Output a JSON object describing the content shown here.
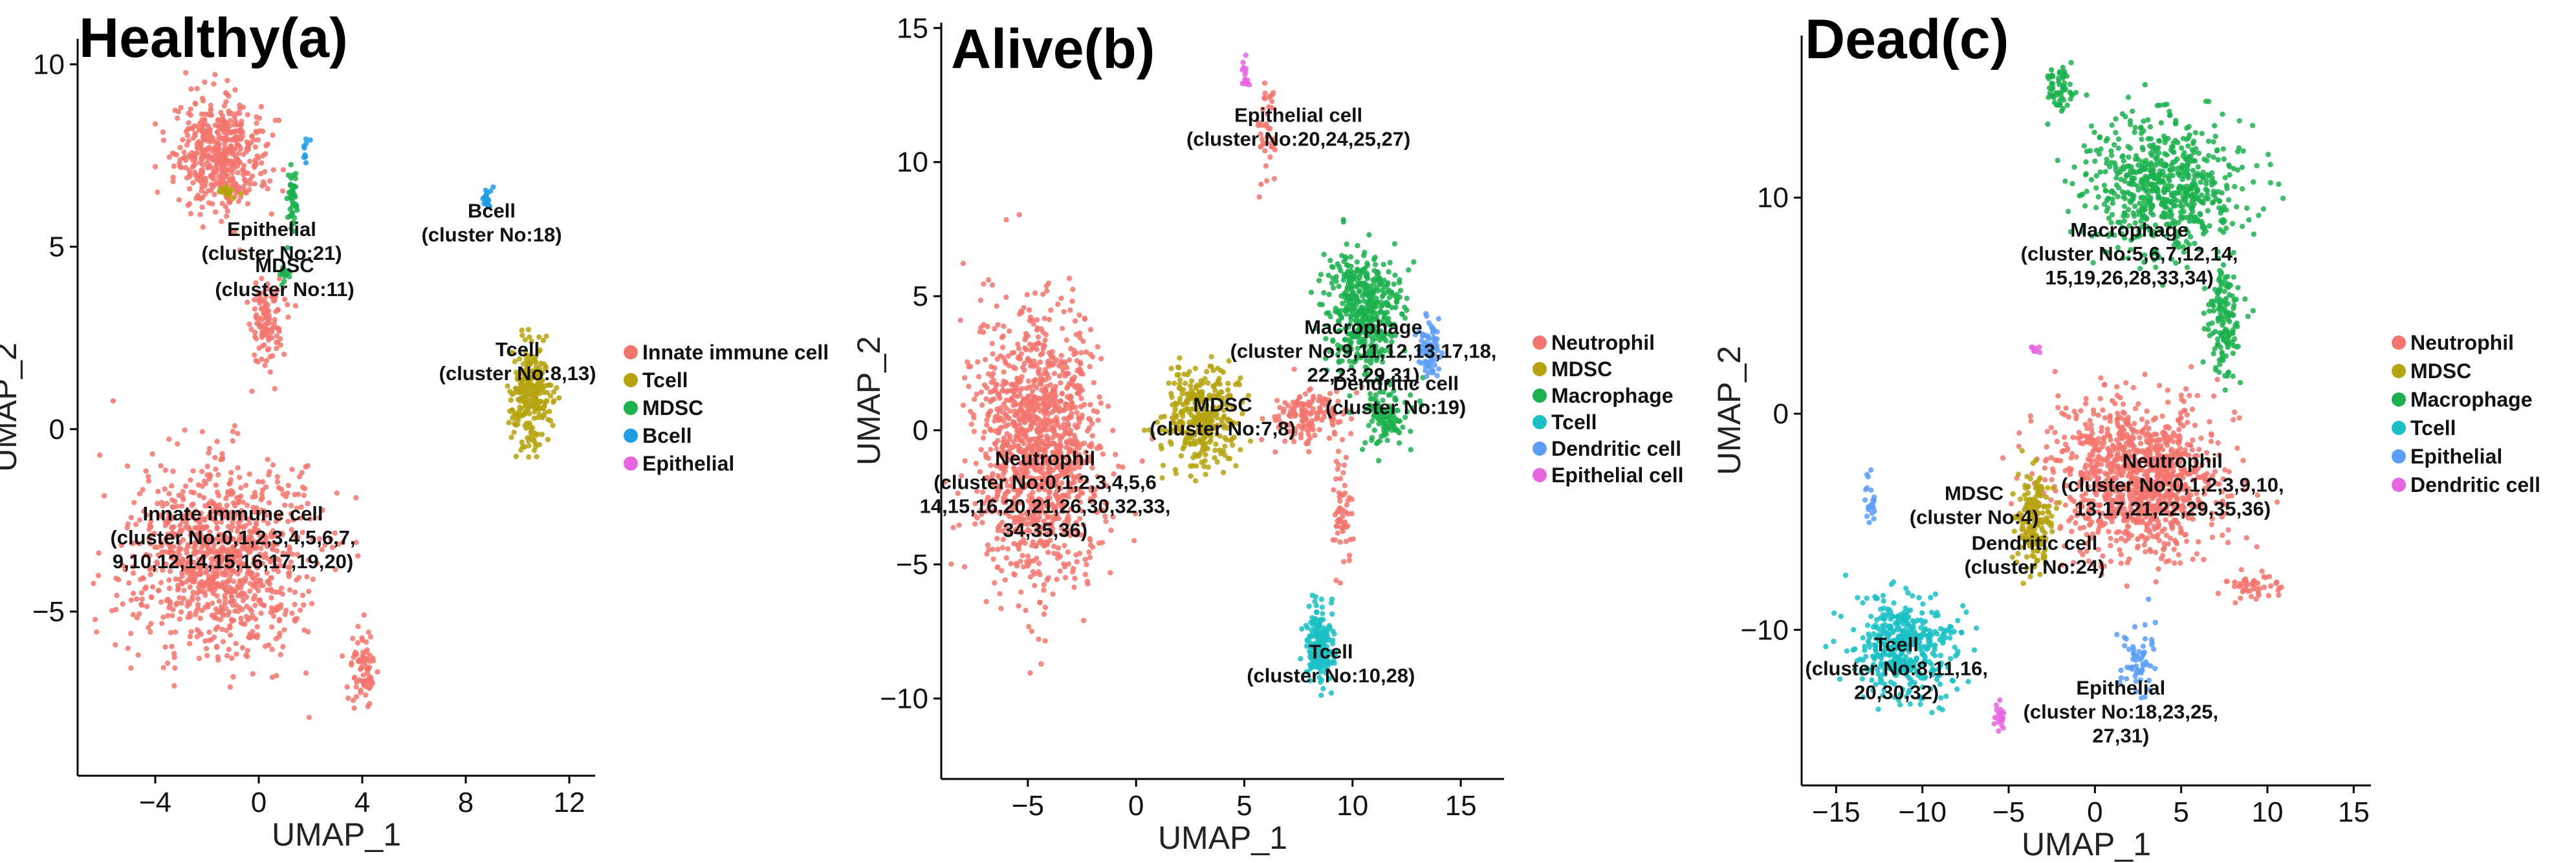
{
  "colors": {
    "red": "#F2766E",
    "olive": "#B5A30F",
    "green": "#1CB04F",
    "teal": "#1ABFC4",
    "blue": "#5C9DF8",
    "magenta": "#E566DF",
    "sky": "#1E9DE3"
  },
  "chart_data": [
    {
      "type": "scatter",
      "title": "Healthy(a)",
      "xlabel": "UMAP_1",
      "ylabel": "UMAP_2",
      "xlim": [
        -7,
        13
      ],
      "ylim": [
        -9.5,
        10.7
      ],
      "xticks": [
        "−4",
        "0",
        "4",
        "8",
        "12"
      ],
      "yticks": [
        "10",
        "5",
        "0",
        "−5"
      ],
      "legend": [
        {
          "label": "Innate immune cell",
          "color": "#F2766E"
        },
        {
          "label": "Tcell",
          "color": "#B5A30F"
        },
        {
          "label": "MDSC",
          "color": "#1CB04F"
        },
        {
          "label": "Bcell",
          "color": "#1E9DE3"
        },
        {
          "label": "Epithelial",
          "color": "#E566DF"
        }
      ],
      "clusters": [
        {
          "cell_type": "Innate immune cell",
          "color": "#F2766E",
          "center": [
            -1.5,
            7.5
          ],
          "spread": [
            1.5,
            1.3
          ],
          "n": 500
        },
        {
          "cell_type": "Innate immune cell",
          "color": "#F2766E",
          "center": [
            -1.5,
            -3.5
          ],
          "spread": [
            3.2,
            2.4
          ],
          "n": 1000
        },
        {
          "cell_type": "Innate immune cell",
          "color": "#F2766E",
          "center": [
            0.3,
            3.0
          ],
          "spread": [
            0.6,
            1.0
          ],
          "n": 120
        },
        {
          "cell_type": "Innate immune cell",
          "color": "#F2766E",
          "center": [
            4.0,
            -6.5
          ],
          "spread": [
            0.5,
            1.0
          ],
          "n": 80
        },
        {
          "cell_type": "Tcell",
          "color": "#B5A30F",
          "center": [
            10.5,
            1.0
          ],
          "spread": [
            0.7,
            1.3
          ],
          "n": 260
        },
        {
          "cell_type": "Tcell",
          "color": "#B5A30F",
          "center": [
            -1.2,
            6.5
          ],
          "spread": [
            0.3,
            0.15
          ],
          "n": 20
        },
        {
          "cell_type": "MDSC",
          "color": "#1CB04F",
          "center": [
            1.3,
            6.3
          ],
          "spread": [
            0.15,
            0.8
          ],
          "n": 50
        },
        {
          "cell_type": "MDSC",
          "color": "#1CB04F",
          "center": [
            1.0,
            4.3
          ],
          "spread": [
            0.2,
            0.3
          ],
          "n": 15
        },
        {
          "cell_type": "Bcell",
          "color": "#1E9DE3",
          "center": [
            8.8,
            6.3
          ],
          "spread": [
            0.15,
            0.3
          ],
          "n": 20
        },
        {
          "cell_type": "Bcell",
          "color": "#1E9DE3",
          "center": [
            1.8,
            7.8
          ],
          "spread": [
            0.1,
            0.5
          ],
          "n": 10
        }
      ],
      "annotations": [
        {
          "text": "Bcell",
          "cx": 9.0,
          "line": 0,
          "y": 5.8
        },
        {
          "text": "(cluster No:18)",
          "cx": 9.0,
          "line": 1,
          "y": 5.8
        },
        {
          "text": "Epithelial",
          "cx": 0.5,
          "line": 0,
          "y": 5.3
        },
        {
          "text": "(cluster No:21)",
          "cx": 0.5,
          "line": 1,
          "y": 5.3
        },
        {
          "text": "MDSC",
          "cx": 1.0,
          "line": 0,
          "y": 4.3
        },
        {
          "text": "(cluster No:11)",
          "cx": 1.0,
          "line": 1,
          "y": 4.3
        },
        {
          "text": "Tcell",
          "cx": 10.0,
          "line": 0,
          "y": 2.0
        },
        {
          "text": "(cluster No:8,13)",
          "cx": 10.0,
          "line": 1,
          "y": 2.0
        },
        {
          "text": "Innate immune cell",
          "cx": -1.0,
          "line": 0,
          "y": -2.5
        },
        {
          "text": "(cluster No:0,1,2,3,4,5,6,7,",
          "cx": -1.0,
          "line": 1,
          "y": -2.5
        },
        {
          "text": "9,10,12,14,15,16,17,19,20)",
          "cx": -1.0,
          "line": 2,
          "y": -2.5
        }
      ]
    },
    {
      "type": "scatter",
      "title": "Alive(b)",
      "xlabel": "UMAP_1",
      "ylabel": "UMAP_2",
      "xlim": [
        -9,
        17
      ],
      "ylim": [
        -13,
        15.2
      ],
      "xticks": [
        "−5",
        "0",
        "5",
        "10",
        "15"
      ],
      "yticks": [
        "15",
        "10",
        "5",
        "0",
        "−5",
        "−10"
      ],
      "legend": [
        {
          "label": "Neutrophil",
          "color": "#F2766E"
        },
        {
          "label": "MDSC",
          "color": "#B5A30F"
        },
        {
          "label": "Macrophage",
          "color": "#1CB04F"
        },
        {
          "label": "Tcell",
          "color": "#1ABFC4"
        },
        {
          "label": "Dendritic cell",
          "color": "#5C9DF8"
        },
        {
          "label": "Epithelial cell",
          "color": "#E566DF"
        }
      ],
      "clusters": [
        {
          "cell_type": "Neutrophil",
          "color": "#F2766E",
          "center": [
            -4.5,
            -0.5
          ],
          "spread": [
            2.6,
            4.6
          ],
          "n": 1300
        },
        {
          "cell_type": "Neutrophil",
          "color": "#F2766E",
          "center": [
            8.0,
            0.5
          ],
          "spread": [
            1.5,
            1.0
          ],
          "n": 150
        },
        {
          "cell_type": "Neutrophil",
          "color": "#F2766E",
          "center": [
            6.0,
            11.0
          ],
          "spread": [
            0.5,
            1.5
          ],
          "n": 40
        },
        {
          "cell_type": "Neutrophil",
          "color": "#F2766E",
          "center": [
            9.5,
            -3.0
          ],
          "spread": [
            0.4,
            2.0
          ],
          "n": 60
        },
        {
          "cell_type": "MDSC",
          "color": "#B5A30F",
          "center": [
            3.0,
            0.5
          ],
          "spread": [
            1.5,
            1.6
          ],
          "n": 350
        },
        {
          "cell_type": "Macrophage",
          "color": "#1CB04F",
          "center": [
            10.5,
            4.5
          ],
          "spread": [
            1.6,
            2.0
          ],
          "n": 450
        },
        {
          "cell_type": "Macrophage",
          "color": "#1CB04F",
          "center": [
            11.5,
            0.5
          ],
          "spread": [
            1.0,
            1.2
          ],
          "n": 120
        },
        {
          "cell_type": "Dendritic cell",
          "color": "#5C9DF8",
          "center": [
            13.5,
            3.0
          ],
          "spread": [
            0.5,
            1.0
          ],
          "n": 80
        },
        {
          "cell_type": "Tcell",
          "color": "#1ABFC4",
          "center": [
            8.5,
            -8.0
          ],
          "spread": [
            0.6,
            1.3
          ],
          "n": 200
        },
        {
          "cell_type": "Epithelial cell",
          "color": "#E566DF",
          "center": [
            5.0,
            13.2
          ],
          "spread": [
            0.2,
            0.6
          ],
          "n": 15
        }
      ],
      "annotations": [
        {
          "text": "Epithelial cell",
          "cx": 7.5,
          "line": 0,
          "y": 11.5
        },
        {
          "text": "(cluster No:20,24,25,27)",
          "cx": 7.5,
          "line": 1,
          "y": 11.5
        },
        {
          "text": "Macrophage",
          "cx": 10.5,
          "line": 0,
          "y": 3.6
        },
        {
          "text": "(cluster No:9,11,12,13,17,18,",
          "cx": 10.5,
          "line": 1,
          "y": 3.6
        },
        {
          "text": "22,23,29,31)",
          "cx": 10.5,
          "line": 2,
          "y": 3.6
        },
        {
          "text": "Dendritic cell",
          "cx": 12.0,
          "line": 0,
          "y": 1.5
        },
        {
          "text": "(cluster No:19)",
          "cx": 12.0,
          "line": 1,
          "y": 1.5
        },
        {
          "text": "MDSC",
          "cx": 4.0,
          "line": 0,
          "y": 0.7
        },
        {
          "text": "(cluster No:7,8)",
          "cx": 4.0,
          "line": 1,
          "y": 0.7
        },
        {
          "text": "Neutrophil",
          "cx": -4.2,
          "line": 0,
          "y": -1.3
        },
        {
          "text": "(cluster No:0,1,2,3,4,5,6",
          "cx": -4.2,
          "line": 1,
          "y": -1.3
        },
        {
          "text": "14,15,16,20,21,26,30,32,33,",
          "cx": -4.2,
          "line": 2,
          "y": -1.3
        },
        {
          "text": "34,35,36)",
          "cx": -4.2,
          "line": 3,
          "y": -1.3
        },
        {
          "text": "Tcell",
          "cx": 9.0,
          "line": 0,
          "y": -8.5
        },
        {
          "text": "(cluster No:10,28)",
          "cx": 9.0,
          "line": 1,
          "y": -8.5
        }
      ]
    },
    {
      "type": "scatter",
      "title": "Dead(c)",
      "xlabel": "UMAP_1",
      "ylabel": "UMAP_2",
      "xlim": [
        -17,
        16
      ],
      "ylim": [
        -17.2,
        17.5
      ],
      "xticks": [
        "−15",
        "−10",
        "−5",
        "0",
        "5",
        "10",
        "15"
      ],
      "yticks": [
        "10",
        "0",
        "−10"
      ],
      "legend": [
        {
          "label": "Neutrophil",
          "color": "#F2766E"
        },
        {
          "label": "MDSC",
          "color": "#B5A30F"
        },
        {
          "label": "Macrophage",
          "color": "#1CB04F"
        },
        {
          "label": "Tcell",
          "color": "#1ABFC4"
        },
        {
          "label": "Epithelial",
          "color": "#5C9DF8"
        },
        {
          "label": "Dendritic cell",
          "color": "#E566DF"
        }
      ],
      "clusters": [
        {
          "cell_type": "Macrophage",
          "color": "#1CB04F",
          "center": [
            4.0,
            10.5
          ],
          "spread": [
            4.2,
            2.8
          ],
          "n": 650
        },
        {
          "cell_type": "Macrophage",
          "color": "#1CB04F",
          "center": [
            -2.0,
            15.0
          ],
          "spread": [
            0.8,
            1.0
          ],
          "n": 60
        },
        {
          "cell_type": "Macrophage",
          "color": "#1CB04F",
          "center": [
            7.5,
            4.5
          ],
          "spread": [
            0.8,
            2.5
          ],
          "n": 150
        },
        {
          "cell_type": "Neutrophil",
          "color": "#F2766E",
          "center": [
            2.5,
            -3.0
          ],
          "spread": [
            4.3,
            3.2
          ],
          "n": 1100
        },
        {
          "cell_type": "Neutrophil",
          "color": "#F2766E",
          "center": [
            9.0,
            -8.0
          ],
          "spread": [
            1.5,
            0.6
          ],
          "n": 50
        },
        {
          "cell_type": "MDSC",
          "color": "#B5A30F",
          "center": [
            -3.5,
            -5.0
          ],
          "spread": [
            1.0,
            2.0
          ],
          "n": 180
        },
        {
          "cell_type": "Tcell",
          "color": "#1ABFC4",
          "center": [
            -11.0,
            -10.8
          ],
          "spread": [
            2.6,
            2.0
          ],
          "n": 450
        },
        {
          "cell_type": "Epithelial",
          "color": "#5C9DF8",
          "center": [
            2.5,
            -11.5
          ],
          "spread": [
            0.8,
            1.5
          ],
          "n": 60
        },
        {
          "cell_type": "Epithelial",
          "color": "#5C9DF8",
          "center": [
            -13.0,
            -4.0
          ],
          "spread": [
            0.3,
            1.0
          ],
          "n": 25
        },
        {
          "cell_type": "Dendritic cell",
          "color": "#E566DF",
          "center": [
            -5.5,
            -14.0
          ],
          "spread": [
            0.3,
            0.6
          ],
          "n": 20
        },
        {
          "cell_type": "Dendritic cell",
          "color": "#E566DF",
          "center": [
            -3.5,
            3.0
          ],
          "spread": [
            0.3,
            0.3
          ],
          "n": 8
        }
      ],
      "annotations": [
        {
          "text": "Macrophage",
          "cx": 2.0,
          "line": 0,
          "y": 8.2
        },
        {
          "text": "(cluster No:5,6,7,12,14,",
          "cx": 2.0,
          "line": 1,
          "y": 8.2
        },
        {
          "text": "15,19,26,28,33,34)",
          "cx": 2.0,
          "line": 2,
          "y": 8.2
        },
        {
          "text": "Neutrophil",
          "cx": 4.5,
          "line": 0,
          "y": -2.5
        },
        {
          "text": "(cluster No:0,1,2,3,9,10,",
          "cx": 4.5,
          "line": 1,
          "y": -2.5
        },
        {
          "text": "13,17,21,22,29,35,36)",
          "cx": 4.5,
          "line": 2,
          "y": -2.5
        },
        {
          "text": "MDSC",
          "cx": -7.0,
          "line": 0,
          "y": -4.0
        },
        {
          "text": "(cluster No:4)",
          "cx": -7.0,
          "line": 1,
          "y": -4.0
        },
        {
          "text": "Dendritic cell",
          "cx": -3.5,
          "line": 0,
          "y": -6.3
        },
        {
          "text": "(cluster No:24)",
          "cx": -3.5,
          "line": 1,
          "y": -6.3
        },
        {
          "text": "Tcell",
          "cx": -11.5,
          "line": 0,
          "y": -11.0
        },
        {
          "text": "(cluster No:8,11,16,",
          "cx": -11.5,
          "line": 1,
          "y": -11.0
        },
        {
          "text": "20,30,32)",
          "cx": -11.5,
          "line": 2,
          "y": -11.0
        },
        {
          "text": "Epithelial",
          "cx": 1.5,
          "line": 0,
          "y": -13.0
        },
        {
          "text": "(cluster No:18,23,25,",
          "cx": 1.5,
          "line": 1,
          "y": -13.0
        },
        {
          "text": "27,31)",
          "cx": 1.5,
          "line": 2,
          "y": -13.0
        }
      ]
    }
  ]
}
